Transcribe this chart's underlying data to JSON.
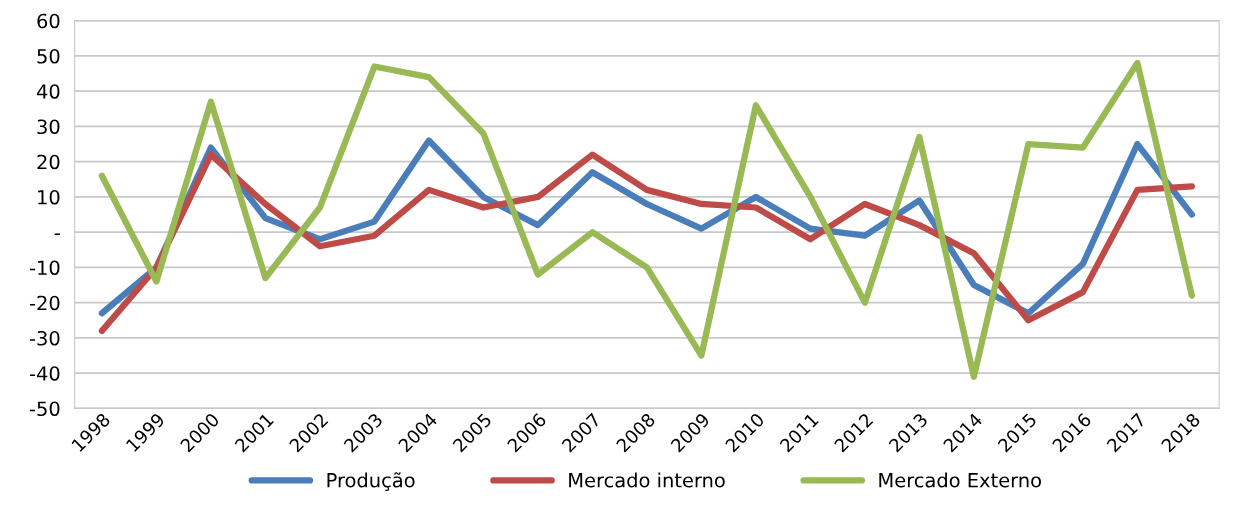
{
  "chart_data": {
    "type": "line",
    "categories": [
      "1998",
      "1999",
      "2000",
      "2001",
      "2002",
      "2003",
      "2004",
      "2005",
      "2006",
      "2007",
      "2008",
      "2009",
      "2010",
      "2011",
      "2012",
      "2013",
      "2014",
      "2015",
      "2016",
      "2017",
      "2018"
    ],
    "series": [
      {
        "name": "Produção",
        "color": "#4a7ebb",
        "values": [
          -23,
          -10,
          24,
          4,
          -2,
          3,
          26,
          10,
          2,
          17,
          8,
          1,
          10,
          1,
          -1,
          9,
          -15,
          -23,
          -9,
          25,
          5
        ]
      },
      {
        "name": "Mercado interno",
        "color": "#be4b48",
        "values": [
          -28,
          -10,
          22,
          8,
          -4,
          -1,
          12,
          7,
          10,
          22,
          12,
          8,
          7,
          -2,
          8,
          2,
          -6,
          -25,
          -17,
          12,
          13
        ]
      },
      {
        "name": "Mercado Externo",
        "color": "#98b954",
        "values": [
          16,
          -14,
          37,
          -13,
          7,
          47,
          44,
          28,
          -12,
          0,
          -10,
          -35,
          36,
          10,
          -20,
          27,
          -41,
          25,
          24,
          48,
          -18
        ]
      }
    ],
    "ylim": [
      -50,
      60
    ],
    "yticks": [
      -50,
      -40,
      -30,
      -20,
      -10,
      {
        "value": 0,
        "label": "-"
      },
      10,
      20,
      30,
      40,
      50,
      60
    ],
    "grid": "y",
    "legend": "bottom",
    "marker": "none",
    "line_style": "solid"
  }
}
